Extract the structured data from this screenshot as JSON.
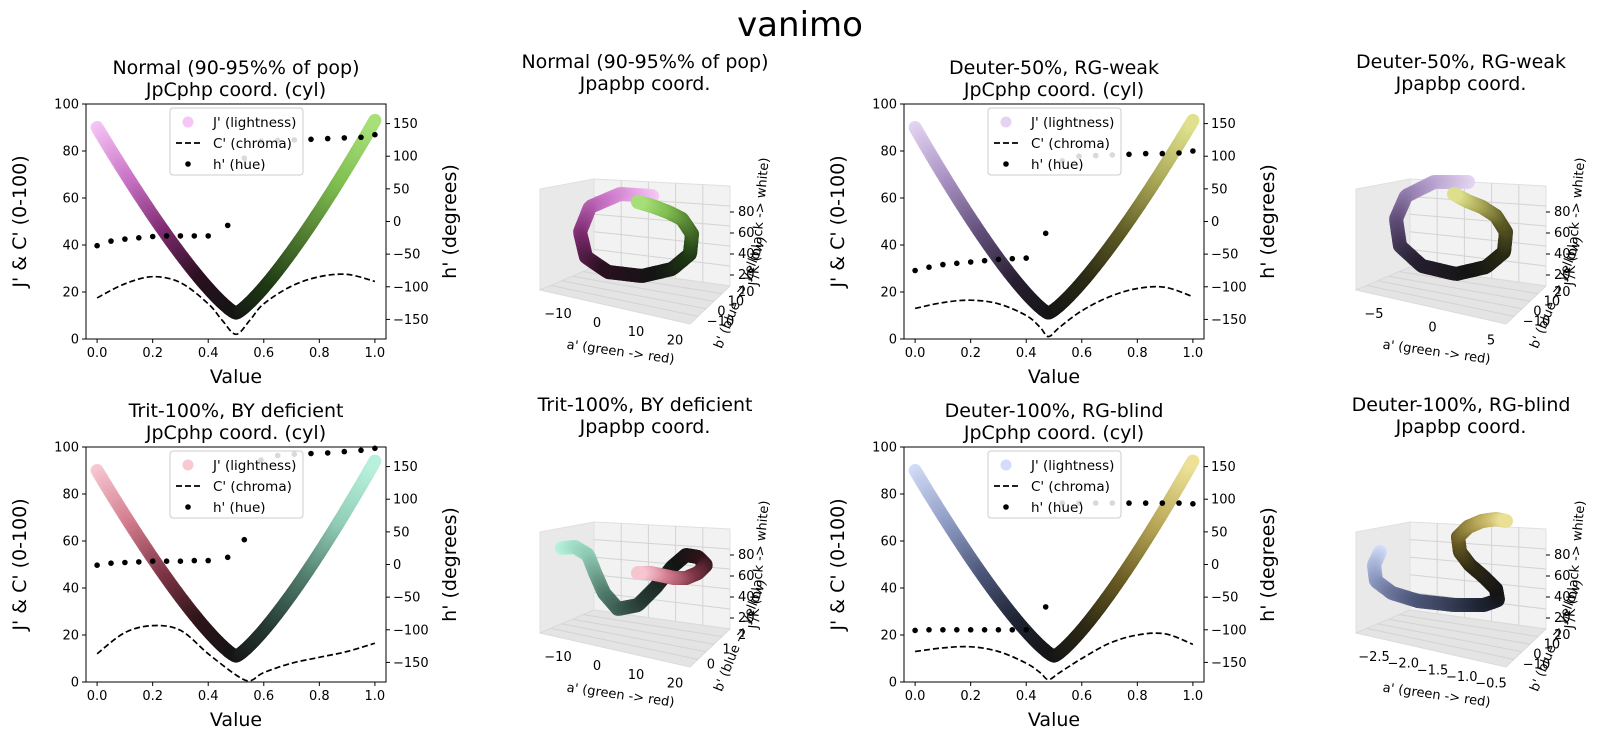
{
  "figure": {
    "title": "vanimo"
  },
  "legend": {
    "j_label": "J' (lightness)",
    "c_label": "C' (chroma)",
    "h_label": "h' (hue)"
  },
  "chart_data": [
    {
      "id": "normal_cyl",
      "type": "line",
      "title_line1": "Normal (90-95%% of pop)",
      "title_line2": "JpCphp coord. (cyl)",
      "xlabel": "Value",
      "ylabel": "J' & C' (0-100)",
      "y2label": "h' (degrees)",
      "xlim": [
        -0.04,
        1.04
      ],
      "ylim": [
        0,
        100
      ],
      "y2lim": [
        -180,
        180
      ],
      "xticks": [
        0.0,
        0.2,
        0.4,
        0.6,
        0.8,
        1.0
      ],
      "yticks": [
        0,
        20,
        40,
        60,
        80,
        100
      ],
      "y2ticks": [
        -150,
        -100,
        -50,
        0,
        50,
        100,
        150
      ],
      "lightness": {
        "x": [
          0,
          0.5,
          1
        ],
        "y": [
          90,
          11,
          93
        ]
      },
      "color_stops": [
        "#f6c6f6",
        "#c873c5",
        "#7d2a6f",
        "#2a1020",
        "#141414",
        "#1e3a13",
        "#4f7a30",
        "#7fbe4f",
        "#a8e07a"
      ],
      "chroma": {
        "x": [
          0,
          0.1,
          0.2,
          0.3,
          0.4,
          0.45,
          0.5,
          0.55,
          0.6,
          0.7,
          0.8,
          0.9,
          1.0
        ],
        "y": [
          17.5,
          23.5,
          26.5,
          24,
          15,
          8,
          2,
          8,
          15,
          22.5,
          26.5,
          27.5,
          24.5
        ]
      },
      "hue": {
        "x": [
          0,
          0.05,
          0.1,
          0.15,
          0.2,
          0.25,
          0.3,
          0.35,
          0.4,
          0.47,
          0.53,
          0.59,
          0.65,
          0.71,
          0.77,
          0.83,
          0.89,
          0.95,
          1.0
        ],
        "y": [
          -37,
          -30,
          -27,
          -25,
          -23,
          -22,
          -22,
          -22,
          -22,
          -6,
          97,
          123,
          124,
          125,
          126,
          127,
          128,
          129,
          133
        ]
      }
    },
    {
      "id": "normal_3d",
      "type": "scatter3d",
      "title_line1": "Normal (90-95%% of pop)",
      "title_line2": "Jpapbp coord.",
      "xlabel": "a' (green -> red)",
      "ylabel": "b' (blue -> yellow)",
      "zlabel": "J'/K (black -> white)",
      "xticks": [
        "−10",
        "0",
        "10",
        "20"
      ],
      "yticks": [
        "−10",
        "0",
        "10",
        "20"
      ],
      "zticks": [
        "20",
        "40",
        "60",
        "80"
      ],
      "color_stops": [
        "#f6c6f6",
        "#c873c5",
        "#7d2a6f",
        "#2a1020",
        "#141414",
        "#1e3a13",
        "#4f7a30",
        "#7fbe4f",
        "#a8e07a"
      ]
    },
    {
      "id": "deuter50_cyl",
      "type": "line",
      "title_line1": "Deuter-50%, RG-weak",
      "title_line2": "JpCphp coord. (cyl)",
      "xlabel": "Value",
      "ylabel": "J' & C' (0-100)",
      "y2label": "h' (degrees)",
      "xlim": [
        -0.04,
        1.04
      ],
      "ylim": [
        0,
        100
      ],
      "y2lim": [
        -180,
        180
      ],
      "xticks": [
        0.0,
        0.2,
        0.4,
        0.6,
        0.8,
        1.0
      ],
      "yticks": [
        0,
        20,
        40,
        60,
        80,
        100
      ],
      "y2ticks": [
        -150,
        -100,
        -50,
        0,
        50,
        100,
        150
      ],
      "lightness": {
        "x": [
          0,
          0.48,
          1
        ],
        "y": [
          90,
          11,
          93
        ]
      },
      "color_stops": [
        "#e4d4f2",
        "#a68fc0",
        "#5e4c76",
        "#271f30",
        "#141414",
        "#2a2a14",
        "#5d5a24",
        "#a8a655",
        "#e0e28e"
      ],
      "chroma": {
        "x": [
          0,
          0.1,
          0.2,
          0.3,
          0.4,
          0.45,
          0.48,
          0.52,
          0.6,
          0.7,
          0.8,
          0.9,
          1.0
        ],
        "y": [
          13,
          15.5,
          16.5,
          15,
          10,
          5,
          1,
          5,
          12,
          18,
          21.5,
          22,
          18
        ]
      },
      "hue": {
        "x": [
          0,
          0.05,
          0.1,
          0.15,
          0.2,
          0.25,
          0.3,
          0.35,
          0.4,
          0.47,
          0.53,
          0.59,
          0.65,
          0.71,
          0.77,
          0.83,
          0.89,
          0.95,
          1.0
        ],
        "y": [
          -75,
          -70,
          -66,
          -64,
          -62,
          -60,
          -58,
          -57,
          -56,
          -18,
          93,
          100,
          101,
          102,
          103,
          104,
          104,
          105,
          108
        ]
      }
    },
    {
      "id": "deuter50_3d",
      "type": "scatter3d",
      "title_line1": "Deuter-50%, RG-weak",
      "title_line2": "Jpapbp coord.",
      "xlabel": "a' (green -> red)",
      "ylabel": "b' (blue -> yellow)",
      "zlabel": "J'/K (black -> white)",
      "xticks": [
        "−5",
        "0",
        "5"
      ],
      "yticks": [
        "−10",
        "0",
        "10",
        "20"
      ],
      "zticks": [
        "20",
        "40",
        "60",
        "80"
      ],
      "color_stops": [
        "#e4d4f2",
        "#a68fc0",
        "#5e4c76",
        "#271f30",
        "#141414",
        "#2a2a14",
        "#5d5a24",
        "#a8a655",
        "#e0e28e"
      ]
    },
    {
      "id": "trit100_cyl",
      "type": "line",
      "title_line1": "Trit-100%, BY deficient",
      "title_line2": "JpCphp coord. (cyl)",
      "xlabel": "Value",
      "ylabel": "J' & C' (0-100)",
      "y2label": "h' (degrees)",
      "xlim": [
        -0.04,
        1.04
      ],
      "ylim": [
        0,
        100
      ],
      "y2lim": [
        -180,
        180
      ],
      "xticks": [
        0.0,
        0.2,
        0.4,
        0.6,
        0.8,
        1.0
      ],
      "yticks": [
        0,
        20,
        40,
        60,
        80,
        100
      ],
      "y2ticks": [
        -150,
        -100,
        -50,
        0,
        50,
        100,
        150
      ],
      "lightness": {
        "x": [
          0,
          0.5,
          1
        ],
        "y": [
          90,
          11,
          94
        ]
      },
      "color_stops": [
        "#f8c9d3",
        "#d27c8e",
        "#7d3546",
        "#2e1419",
        "#141414",
        "#263a33",
        "#4f7a6a",
        "#8fcbb5",
        "#b8f2dc"
      ],
      "chroma": {
        "x": [
          0,
          0.1,
          0.2,
          0.3,
          0.4,
          0.5,
          0.55,
          0.6,
          0.7,
          0.8,
          0.9,
          1.0
        ],
        "y": [
          12,
          21,
          24,
          22,
          12,
          3,
          0.5,
          4,
          8,
          10.5,
          13,
          16.5
        ]
      },
      "hue": {
        "x": [
          0,
          0.05,
          0.1,
          0.15,
          0.2,
          0.25,
          0.3,
          0.35,
          0.4,
          0.47,
          0.53,
          0.59,
          0.65,
          0.71,
          0.77,
          0.83,
          0.89,
          0.95,
          1.0
        ],
        "y": [
          -1,
          2,
          3,
          4,
          5,
          5,
          5,
          6,
          6,
          11,
          38,
          160,
          167,
          169,
          170,
          171,
          173,
          175,
          178
        ]
      }
    },
    {
      "id": "trit100_3d",
      "type": "scatter3d",
      "title_line1": "Trit-100%, BY deficient",
      "title_line2": "Jpapbp coord.",
      "xlabel": "a' (green -> red)",
      "ylabel": "b' (blue -> yellow)",
      "zlabel": "J'/K (black -> white)",
      "xticks": [
        "−10",
        "0",
        "10",
        "20"
      ],
      "yticks": [
        "0",
        "1",
        "2"
      ],
      "zticks": [
        "20",
        "40",
        "60",
        "80"
      ],
      "color_stops": [
        "#b8f2dc",
        "#8fcbb5",
        "#4f7a6a",
        "#263a33",
        "#141414",
        "#2e1419",
        "#7d3546",
        "#d27c8e",
        "#f8c9d3"
      ]
    },
    {
      "id": "deuter100_cyl",
      "type": "line",
      "title_line1": "Deuter-100%, RG-blind",
      "title_line2": "JpCphp coord. (cyl)",
      "xlabel": "Value",
      "ylabel": "J' & C' (0-100)",
      "y2label": "h' (degrees)",
      "xlim": [
        -0.04,
        1.04
      ],
      "ylim": [
        0,
        100
      ],
      "y2lim": [
        -180,
        180
      ],
      "xticks": [
        0.0,
        0.2,
        0.4,
        0.6,
        0.8,
        1.0
      ],
      "yticks": [
        0,
        20,
        40,
        60,
        80,
        100
      ],
      "y2ticks": [
        -150,
        -100,
        -50,
        0,
        50,
        100,
        150
      ],
      "lightness": {
        "x": [
          0,
          0.5,
          1
        ],
        "y": [
          90,
          11,
          94
        ]
      },
      "color_stops": [
        "#d3dcf8",
        "#8f9cc3",
        "#4c5678",
        "#1f2433",
        "#141414",
        "#2c2814",
        "#6a5c24",
        "#b8a757",
        "#ede298"
      ],
      "chroma": {
        "x": [
          0,
          0.1,
          0.2,
          0.3,
          0.4,
          0.45,
          0.48,
          0.52,
          0.6,
          0.7,
          0.8,
          0.9,
          1.0
        ],
        "y": [
          13,
          14.5,
          15,
          13,
          8,
          4,
          1,
          4,
          10,
          16.5,
          20,
          20.5,
          16
        ]
      },
      "hue": {
        "x": [
          0,
          0.05,
          0.1,
          0.15,
          0.2,
          0.25,
          0.3,
          0.35,
          0.4,
          0.47,
          0.53,
          0.59,
          0.65,
          0.71,
          0.77,
          0.83,
          0.89,
          0.95,
          1.0
        ],
        "y": [
          -101,
          -100,
          -100,
          -100,
          -100,
          -100,
          -100,
          -100,
          -100,
          -65,
          94,
          94,
          94,
          94,
          94,
          94,
          94,
          94,
          93
        ]
      }
    },
    {
      "id": "deuter100_3d",
      "type": "scatter3d",
      "title_line1": "Deuter-100%, RG-blind",
      "title_line2": "Jpapbp coord.",
      "xlabel": "a' (green -> red)",
      "ylabel": "b' (blue -> yellow)",
      "zlabel": "J'/K (black -> white)",
      "xticks": [
        "−2.5",
        "−2.0",
        "−1.5",
        "−1.0",
        "−0.5"
      ],
      "yticks": [
        "−10",
        "0",
        "10",
        "20"
      ],
      "zticks": [
        "20",
        "40",
        "60",
        "80"
      ],
      "color_stops": [
        "#d3dcf8",
        "#8f9cc3",
        "#4c5678",
        "#1f2433",
        "#141414",
        "#2c2814",
        "#6a5c24",
        "#b8a757",
        "#ede298"
      ]
    }
  ]
}
